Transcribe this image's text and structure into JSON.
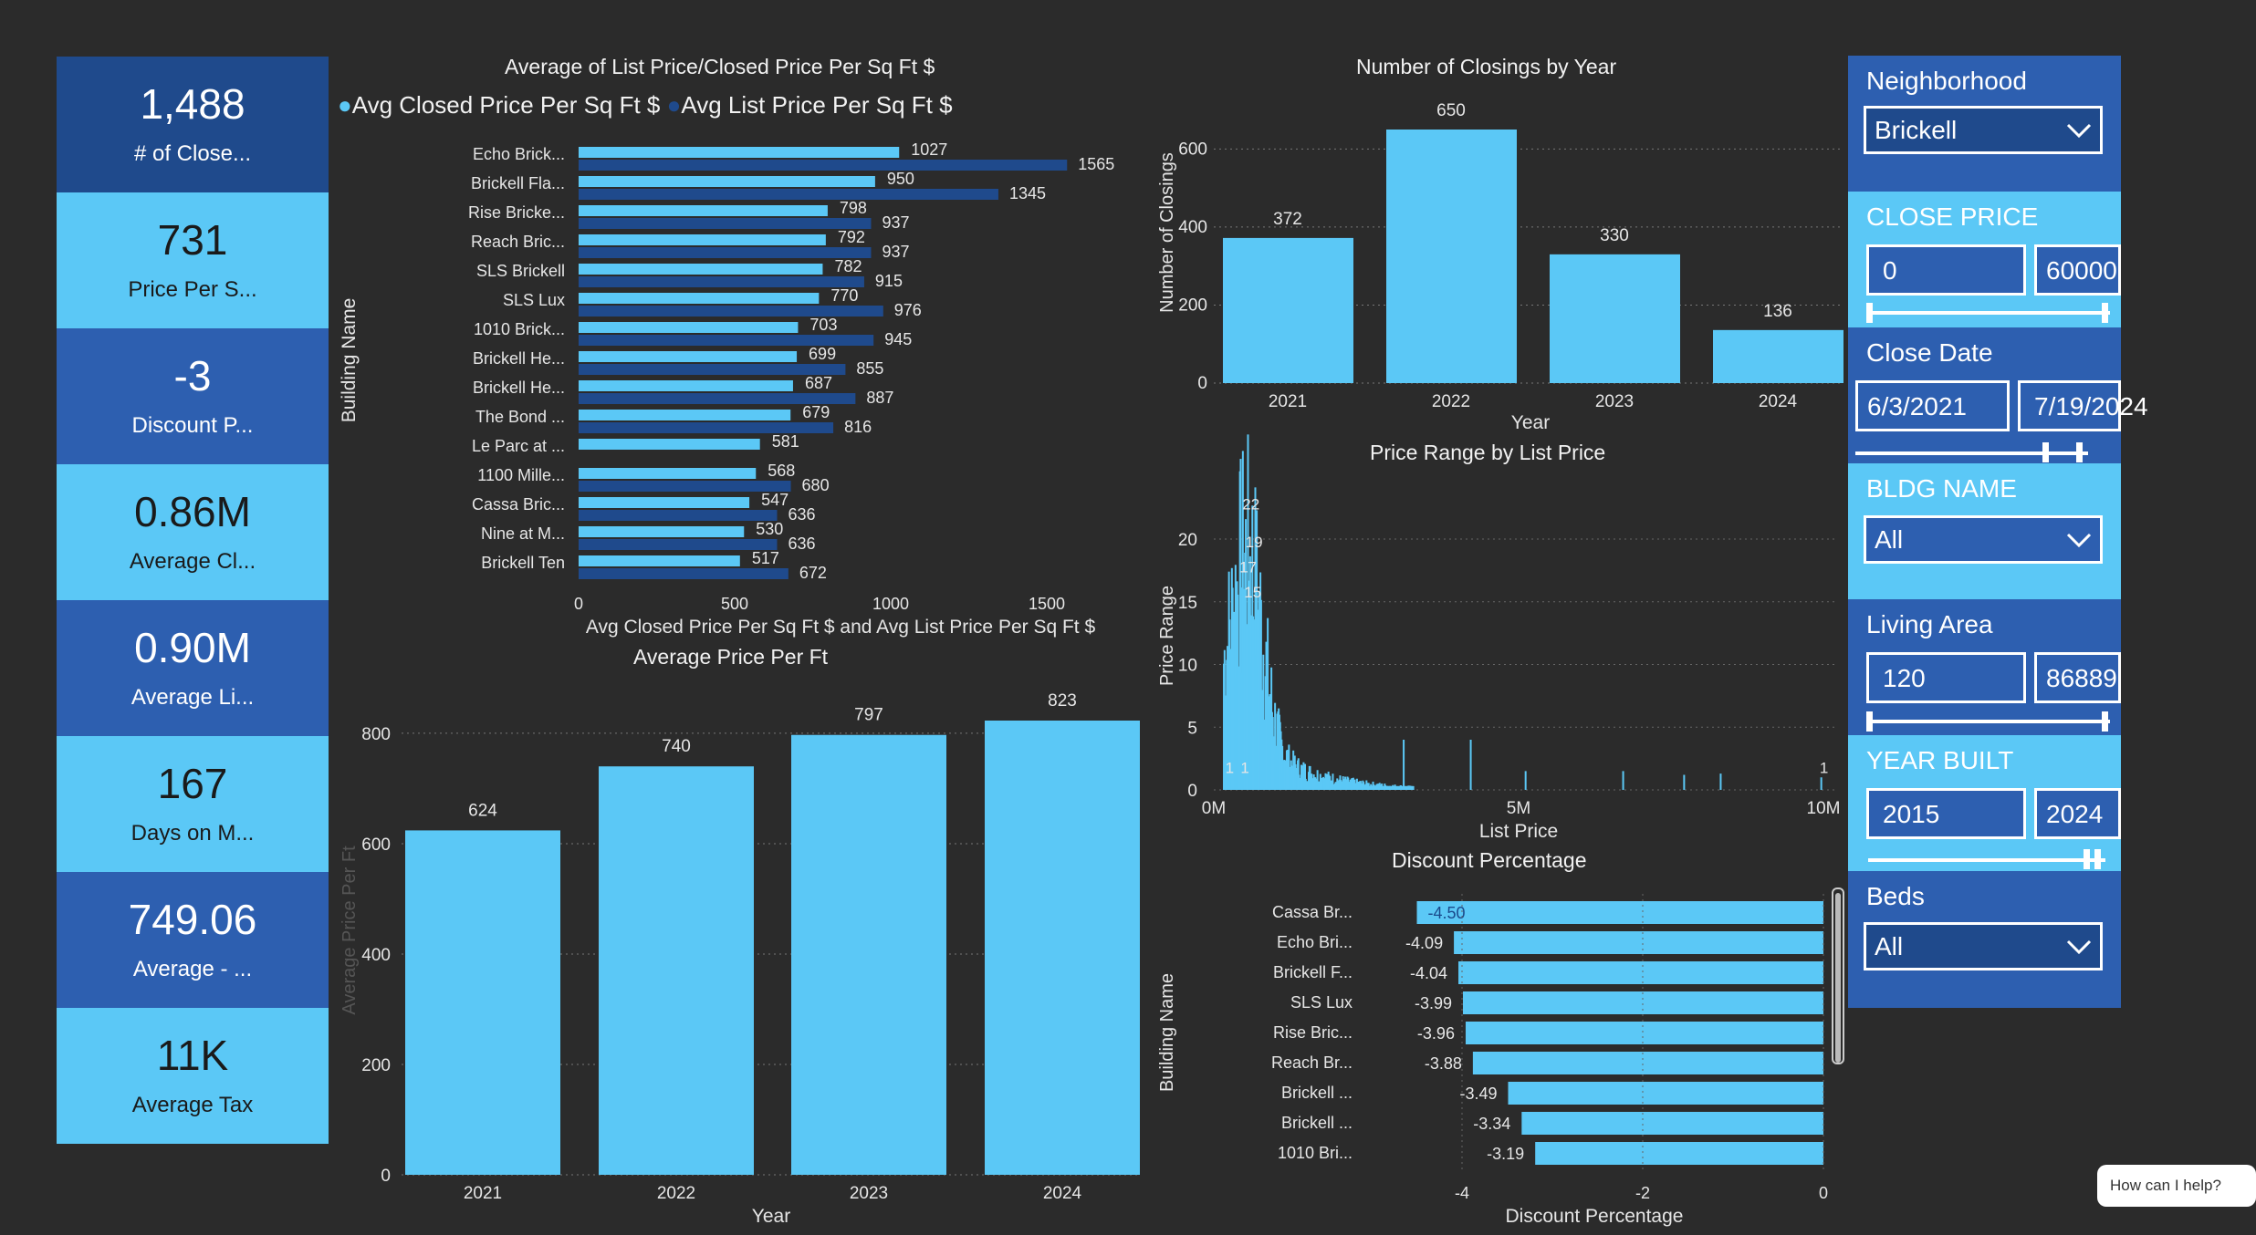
{
  "kpis": [
    {
      "value": "1,488",
      "label": "# of Close..."
    },
    {
      "value": "731",
      "label": "Price Per S..."
    },
    {
      "value": "-3",
      "label": "Discount P..."
    },
    {
      "value": "0.86M",
      "label": "Average Cl..."
    },
    {
      "value": "0.90M",
      "label": "Average Li..."
    },
    {
      "value": "167",
      "label": "Days on M..."
    },
    {
      "value": "749.06",
      "label": "Average - ..."
    },
    {
      "value": "11K",
      "label": "Average Tax"
    }
  ],
  "colors": {
    "light": "#5bc8f6",
    "dark": "#2d5fb0",
    "darker": "#1f4a8c",
    "bg": "#2b2b2b"
  },
  "chart_data": [
    {
      "type": "bar",
      "orientation": "horizontal",
      "title": "Average of List Price/Closed Price Per Sq Ft $",
      "legend": [
        "Avg Closed Price Per Sq Ft $",
        "Avg List Price Per Sq Ft $"
      ],
      "ylabel": "Building Name",
      "xlabel": "Avg Closed Price Per Sq Ft $ and Avg List Price Per Sq Ft $",
      "categories": [
        "Echo Brick...",
        "Brickell Fla...",
        "Rise Bricke...",
        "Reach Bric...",
        "SLS Brickell",
        "SLS Lux",
        "1010 Brick...",
        "Brickell He...",
        "Brickell He...",
        "The Bond ...",
        "Le Parc at ...",
        "1100 Mille...",
        "Cassa Bric...",
        "Nine at M...",
        "Brickell Ten"
      ],
      "series": [
        {
          "name": "Avg Closed Price Per Sq Ft $",
          "values": [
            1027,
            950,
            798,
            792,
            782,
            770,
            703,
            699,
            687,
            679,
            581,
            568,
            547,
            530,
            517
          ]
        },
        {
          "name": "Avg List Price Per Sq Ft $",
          "values": [
            1565,
            1345,
            937,
            937,
            915,
            976,
            945,
            855,
            887,
            816,
            null,
            680,
            636,
            636,
            672
          ]
        }
      ],
      "xticks": [
        "0",
        "500",
        "1000",
        "1500"
      ],
      "xlim": [
        0,
        1600
      ]
    },
    {
      "type": "bar",
      "title": "Number of Closings by Year",
      "xlabel": "Year",
      "ylabel": "Number of Closings",
      "categories": [
        "2021",
        "2022",
        "2023",
        "2024"
      ],
      "values": [
        372,
        650,
        330,
        136
      ],
      "yticks": [
        "0",
        "200",
        "400",
        "600"
      ],
      "ylim": [
        0,
        650
      ]
    },
    {
      "type": "bar",
      "title": "Average Price Per Ft",
      "xlabel": "Year",
      "ylabel": "Average Price Per Ft",
      "categories": [
        "2021",
        "2022",
        "2023",
        "2024"
      ],
      "values": [
        624,
        740,
        797,
        823
      ],
      "yticks": [
        "0",
        "200",
        "400",
        "600",
        "800"
      ],
      "ylim": [
        0,
        823
      ]
    },
    {
      "type": "bar",
      "title": "Price Range by List Price",
      "xlabel": "List Price",
      "ylabel": "Price Range",
      "xticks": [
        "0M",
        "5M",
        "10M"
      ],
      "yticks": [
        "0",
        "5",
        "10",
        "15",
        "20"
      ],
      "xlim": [
        0,
        10
      ],
      "ylim": [
        0,
        22
      ],
      "labels": [
        "22",
        "19",
        "17",
        "15",
        "1",
        "1",
        "1"
      ],
      "peak_values": [
        {
          "x": 0.55,
          "y": 22
        },
        {
          "x": 0.6,
          "y": 19
        },
        {
          "x": 0.5,
          "y": 17
        },
        {
          "x": 0.58,
          "y": 15
        },
        {
          "x": 0.2,
          "y": 1
        },
        {
          "x": 0.45,
          "y": 1
        },
        {
          "x": 9.95,
          "y": 1
        }
      ]
    },
    {
      "type": "bar",
      "orientation": "horizontal",
      "title": "Discount Percentage",
      "xlabel": "Discount Percentage",
      "ylabel": "Building Name",
      "categories": [
        "Cassa Br...",
        "Echo Bri...",
        "Brickell F...",
        "SLS Lux",
        "Rise Bric...",
        "Reach Br...",
        "Brickell ...",
        "Brickell ...",
        "1010 Bri..."
      ],
      "values": [
        -4.5,
        -4.09,
        -4.04,
        -3.99,
        -3.96,
        -3.88,
        -3.49,
        -3.34,
        -3.19
      ],
      "value_labels": [
        "-4.50",
        "-4.09",
        "-4.04",
        "-3.99",
        "-3.96",
        "-3.88",
        "-3.49",
        "-3.34",
        "-3.19"
      ],
      "xticks": [
        "-4",
        "-2",
        "0"
      ],
      "xlim": [
        -4.8,
        0
      ]
    }
  ],
  "slicers": {
    "neighborhood": {
      "title": "Neighborhood",
      "value": "Brickell"
    },
    "close_price": {
      "title": "CLOSE PRICE",
      "min": "0",
      "max": "60000"
    },
    "close_date": {
      "title": "Close Date",
      "min": "6/3/2021",
      "max": "7/19/2024"
    },
    "bldg_name": {
      "title": "BLDG NAME",
      "value": "All"
    },
    "living_area": {
      "title": "Living Area",
      "min": "120",
      "max": "86889"
    },
    "year_built": {
      "title": "YEAR BUILT",
      "min": "2015",
      "max": "2024"
    },
    "beds": {
      "title": "Beds",
      "value": "All"
    }
  },
  "chat": {
    "label": "How can I help?"
  }
}
